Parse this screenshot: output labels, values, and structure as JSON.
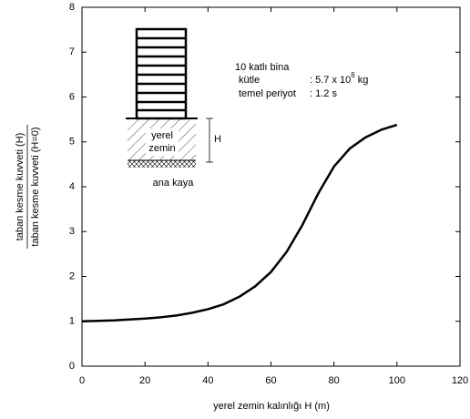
{
  "chart_data": {
    "type": "line",
    "xlabel": "yerel zemin kalınlığı  H (m)",
    "ylabel": {
      "numerator": "taban kesme kuvveti (H)",
      "denominator": "taban kesme kuvveti (H=0)"
    },
    "x": [
      0,
      5,
      10,
      15,
      20,
      25,
      30,
      35,
      40,
      45,
      50,
      55,
      60,
      65,
      70,
      75,
      80,
      85,
      90,
      95,
      100
    ],
    "series": [
      {
        "color": "#000000",
        "values": [
          1.0,
          1.01,
          1.02,
          1.04,
          1.06,
          1.09,
          1.13,
          1.19,
          1.27,
          1.38,
          1.55,
          1.78,
          2.1,
          2.55,
          3.15,
          3.85,
          4.45,
          4.85,
          5.1,
          5.27,
          5.38
        ]
      }
    ],
    "xlim": [
      0,
      120
    ],
    "xticks": [
      0,
      20,
      40,
      60,
      80,
      100,
      120
    ],
    "ylim": [
      0,
      8
    ],
    "yticks": [
      0,
      1,
      2,
      3,
      4,
      5,
      6,
      7,
      8
    ],
    "grid": false,
    "annotations": {
      "building": "10 katlı bina",
      "mass_label": "kütle",
      "mass_value": ": 5.7 x 10",
      "mass_exponent": "6",
      "mass_unit": "kg",
      "period_label": "temel periyot",
      "period_value": ": 1.2 s",
      "soil_1": "yerel",
      "soil_2": "zemin",
      "depth": "H",
      "rock": "ana kaya"
    }
  }
}
